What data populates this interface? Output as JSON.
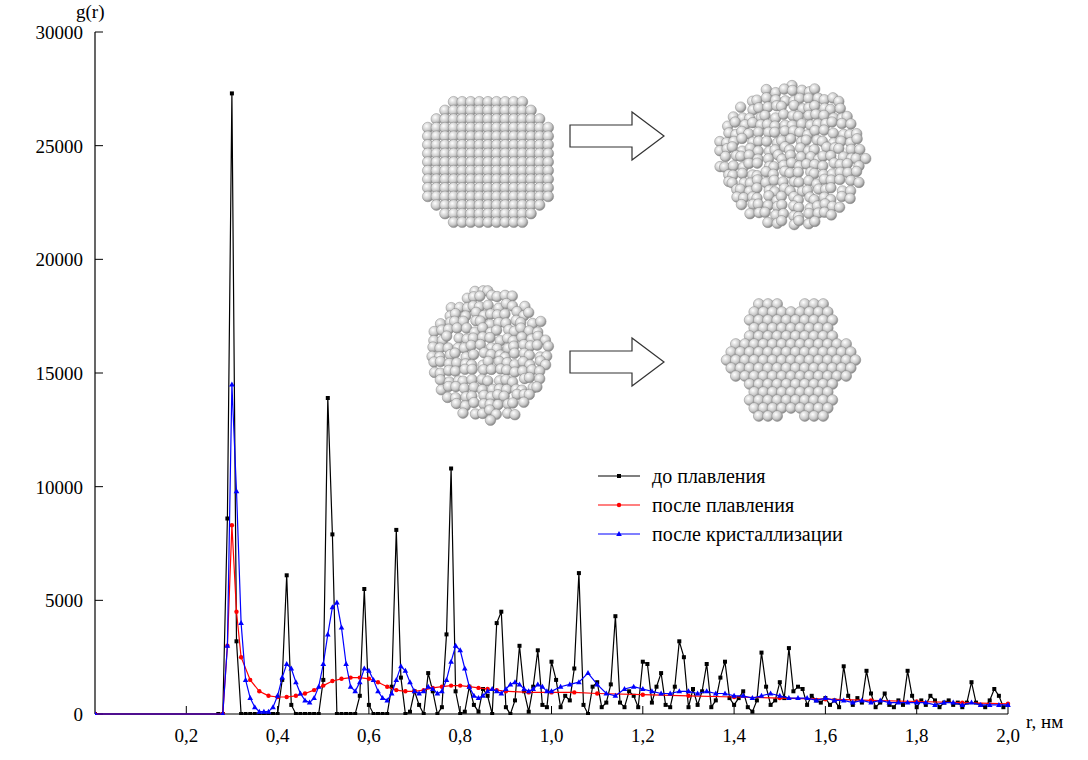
{
  "chart_data": {
    "type": "line",
    "x_label": "r, нм",
    "y_label": "g(r)",
    "xlim": [
      0,
      2.0
    ],
    "ylim": [
      0,
      30000
    ],
    "xticks": [
      {
        "value": 0.2,
        "label": "0,2"
      },
      {
        "value": 0.4,
        "label": "0,4"
      },
      {
        "value": 0.6,
        "label": "0,6"
      },
      {
        "value": 0.8,
        "label": "0,8"
      },
      {
        "value": 1.0,
        "label": "1,0"
      },
      {
        "value": 1.2,
        "label": "1,2"
      },
      {
        "value": 1.4,
        "label": "1,4"
      },
      {
        "value": 1.6,
        "label": "1,6"
      },
      {
        "value": 1.8,
        "label": "1,8"
      },
      {
        "value": 2.0,
        "label": "2,0"
      }
    ],
    "yticks": [
      0,
      5000,
      10000,
      15000,
      20000,
      25000,
      30000
    ],
    "grid": false,
    "legend": "right",
    "series": [
      {
        "name": "до плавления",
        "color": "#000000",
        "marker": "square",
        "line_style": "solid",
        "x": [
          0,
          0.27,
          0.28,
          0.29,
          0.3,
          0.31,
          0.32,
          0.33,
          0.34,
          0.35,
          0.36,
          0.37,
          0.38,
          0.39,
          0.4,
          0.41,
          0.42,
          0.43,
          0.44,
          0.45,
          0.46,
          0.47,
          0.48,
          0.49,
          0.5,
          0.51,
          0.52,
          0.53,
          0.54,
          0.55,
          0.56,
          0.57,
          0.58,
          0.59,
          0.6,
          0.61,
          0.62,
          0.63,
          0.64,
          0.65,
          0.66,
          0.67,
          0.68,
          0.69,
          0.7,
          0.71,
          0.72,
          0.73,
          0.74,
          0.75,
          0.76,
          0.77,
          0.78,
          0.79,
          0.8,
          0.81,
          0.82,
          0.83,
          0.84,
          0.85,
          0.86,
          0.87,
          0.88,
          0.89,
          0.9,
          0.91,
          0.92,
          0.93,
          0.94,
          0.95,
          0.96,
          0.97,
          0.98,
          0.99,
          1.0,
          1.01,
          1.02,
          1.03,
          1.04,
          1.05,
          1.06,
          1.07,
          1.08,
          1.09,
          1.1,
          1.11,
          1.12,
          1.13,
          1.14,
          1.15,
          1.16,
          1.17,
          1.18,
          1.19,
          1.2,
          1.21,
          1.22,
          1.23,
          1.24,
          1.25,
          1.26,
          1.27,
          1.28,
          1.29,
          1.3,
          1.31,
          1.32,
          1.33,
          1.34,
          1.35,
          1.36,
          1.37,
          1.38,
          1.39,
          1.4,
          1.41,
          1.42,
          1.43,
          1.44,
          1.45,
          1.46,
          1.47,
          1.48,
          1.49,
          1.5,
          1.51,
          1.52,
          1.53,
          1.54,
          1.55,
          1.56,
          1.57,
          1.58,
          1.59,
          1.6,
          1.61,
          1.62,
          1.63,
          1.64,
          1.65,
          1.66,
          1.67,
          1.68,
          1.69,
          1.7,
          1.71,
          1.72,
          1.73,
          1.74,
          1.75,
          1.76,
          1.77,
          1.78,
          1.79,
          1.8,
          1.81,
          1.82,
          1.83,
          1.84,
          1.85,
          1.86,
          1.87,
          1.88,
          1.89,
          1.9,
          1.91,
          1.92,
          1.93,
          1.94,
          1.95,
          1.96,
          1.97,
          1.98,
          1.99,
          2.0
        ],
        "values": [
          0,
          0,
          0,
          8600,
          27300,
          3200,
          0,
          0,
          0,
          0,
          0,
          0,
          0,
          0,
          0,
          1500,
          6100,
          400,
          0,
          0,
          0,
          0,
          0,
          0,
          1500,
          13900,
          7900,
          0,
          0,
          0,
          0,
          0,
          800,
          5500,
          400,
          0,
          0,
          0,
          0,
          1200,
          8100,
          1600,
          0,
          100,
          1000,
          400,
          0,
          1800,
          1000,
          0,
          300,
          3500,
          10800,
          1000,
          0,
          100,
          1200,
          400,
          100,
          1100,
          800,
          0,
          4000,
          4500,
          300,
          0,
          600,
          3000,
          1000,
          100,
          1200,
          2800,
          400,
          300,
          2300,
          1500,
          300,
          800,
          600,
          2000,
          6200,
          400,
          0,
          1200,
          1400,
          300,
          500,
          1300,
          4300,
          500,
          300,
          1000,
          800,
          300,
          2300,
          2200,
          500,
          1200,
          1800,
          400,
          300,
          1200,
          3200,
          2500,
          300,
          1100,
          400,
          1000,
          2200,
          300,
          600,
          1600,
          2300,
          700,
          400,
          700,
          1000,
          300,
          100,
          600,
          2700,
          1200,
          400,
          600,
          1400,
          700,
          2900,
          1000,
          1200,
          1100,
          400,
          800,
          600,
          500,
          700,
          400,
          600,
          300,
          2100,
          800,
          400,
          700,
          500,
          1900,
          900,
          300,
          500,
          900,
          400,
          300,
          600,
          400,
          1900,
          800,
          300,
          600,
          400,
          800,
          600,
          300,
          500,
          600,
          400,
          500,
          300,
          500,
          1400,
          500,
          400,
          300,
          600,
          1100,
          800,
          300,
          400
        ]
      },
      {
        "name": "после плавления",
        "color": "#ff0000",
        "marker": "circle",
        "line_style": "solid",
        "x": [
          0,
          0.28,
          0.29,
          0.3,
          0.31,
          0.32,
          0.34,
          0.36,
          0.38,
          0.4,
          0.42,
          0.44,
          0.46,
          0.48,
          0.5,
          0.52,
          0.54,
          0.56,
          0.58,
          0.6,
          0.62,
          0.64,
          0.66,
          0.68,
          0.7,
          0.72,
          0.74,
          0.76,
          0.78,
          0.8,
          0.82,
          0.84,
          0.86,
          0.88,
          0.9,
          0.95,
          1.0,
          1.05,
          1.1,
          1.2,
          1.3,
          1.4,
          1.5,
          1.6,
          1.7,
          1.8,
          1.9,
          2.0
        ],
        "values": [
          0,
          0,
          3000,
          8300,
          4500,
          2500,
          1500,
          1000,
          800,
          750,
          750,
          800,
          900,
          1050,
          1250,
          1450,
          1550,
          1600,
          1600,
          1550,
          1400,
          1200,
          1050,
          1000,
          1000,
          1050,
          1150,
          1200,
          1250,
          1250,
          1200,
          1150,
          1100,
          1050,
          1000,
          950,
          950,
          950,
          900,
          850,
          800,
          750,
          700,
          650,
          600,
          550,
          500,
          450
        ]
      },
      {
        "name": "после кристаллизации",
        "color": "#0000ff",
        "marker": "triangle",
        "line_style": "solid",
        "x": [
          0,
          0.28,
          0.29,
          0.3,
          0.31,
          0.32,
          0.33,
          0.34,
          0.35,
          0.36,
          0.37,
          0.38,
          0.39,
          0.4,
          0.41,
          0.42,
          0.43,
          0.44,
          0.45,
          0.46,
          0.47,
          0.48,
          0.49,
          0.5,
          0.51,
          0.52,
          0.53,
          0.54,
          0.55,
          0.56,
          0.57,
          0.58,
          0.59,
          0.6,
          0.61,
          0.62,
          0.63,
          0.64,
          0.65,
          0.66,
          0.67,
          0.68,
          0.69,
          0.7,
          0.71,
          0.72,
          0.73,
          0.74,
          0.75,
          0.76,
          0.77,
          0.78,
          0.79,
          0.8,
          0.81,
          0.82,
          0.83,
          0.84,
          0.85,
          0.86,
          0.87,
          0.88,
          0.89,
          0.9,
          0.91,
          0.92,
          0.93,
          0.94,
          0.95,
          0.96,
          0.97,
          0.98,
          0.99,
          1.0,
          1.02,
          1.04,
          1.06,
          1.08,
          1.1,
          1.12,
          1.14,
          1.16,
          1.18,
          1.2,
          1.22,
          1.24,
          1.26,
          1.28,
          1.3,
          1.32,
          1.34,
          1.36,
          1.38,
          1.4,
          1.42,
          1.44,
          1.46,
          1.48,
          1.5,
          1.52,
          1.54,
          1.56,
          1.58,
          1.6,
          1.62,
          1.64,
          1.66,
          1.68,
          1.7,
          1.72,
          1.74,
          1.76,
          1.78,
          1.8,
          1.82,
          1.84,
          1.86,
          1.88,
          1.9,
          1.92,
          1.94,
          1.96,
          1.98,
          2.0
        ],
        "values": [
          0,
          0,
          3000,
          14500,
          9800,
          4000,
          1500,
          700,
          300,
          100,
          100,
          100,
          300,
          800,
          1600,
          2200,
          2000,
          1400,
          900,
          600,
          500,
          700,
          1200,
          2200,
          3500,
          4700,
          4900,
          3800,
          2200,
          1200,
          1000,
          1400,
          2000,
          1900,
          1500,
          1000,
          700,
          600,
          900,
          1500,
          2100,
          1900,
          1400,
          1000,
          900,
          1000,
          1200,
          1100,
          900,
          1000,
          1500,
          2300,
          3000,
          2800,
          2000,
          1200,
          800,
          700,
          800,
          1000,
          1100,
          1000,
          900,
          1100,
          1300,
          1400,
          1300,
          1100,
          1000,
          1100,
          1300,
          1200,
          1000,
          1000,
          1200,
          1300,
          1400,
          1800,
          1300,
          900,
          800,
          1100,
          1200,
          1100,
          1000,
          900,
          900,
          1000,
          1000,
          900,
          1000,
          900,
          900,
          800,
          800,
          700,
          800,
          900,
          800,
          700,
          700,
          700,
          600,
          700,
          600,
          600,
          500,
          600,
          500,
          600,
          500,
          500,
          500,
          500,
          500,
          400,
          500,
          500,
          400,
          500,
          400,
          400,
          400,
          400
        ]
      }
    ]
  }
}
